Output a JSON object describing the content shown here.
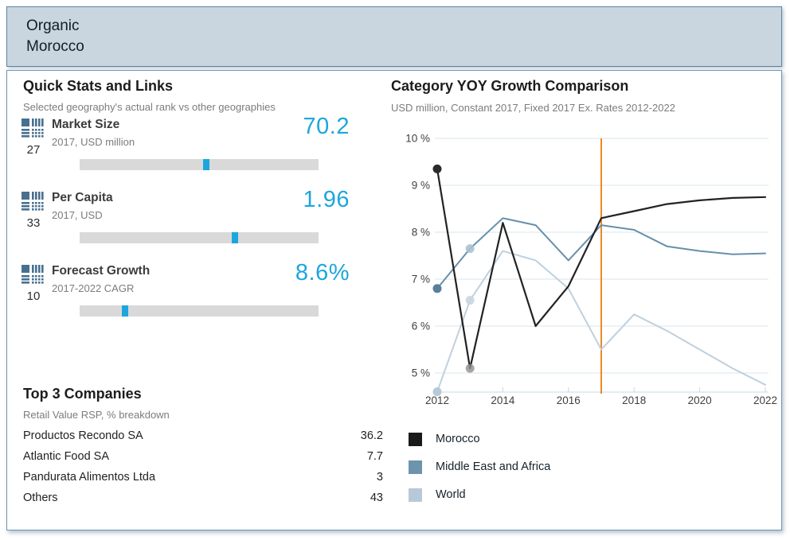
{
  "banner": {
    "title_line1": "Organic",
    "title_line2": "Morocco"
  },
  "colors": {
    "accent_cyan": "#1da6dd",
    "bar_track": "#d9d9d9",
    "banner_bg": "#c9d6e0",
    "panel_border": "#6e96b2",
    "gridline": "#dae5ec",
    "axis_line": "#c7d8e2",
    "forecast_line": "#ee8822"
  },
  "quick_stats": {
    "heading": "Quick Stats and Links",
    "subtitle": "Selected geography's actual rank vs other geographies",
    "items": [
      {
        "rank": "27",
        "title": "Market Size",
        "sub": "2017, USD million",
        "value": "70.2",
        "marker_pct": 53
      },
      {
        "rank": "33",
        "title": "Per Capita",
        "sub": "2017, USD",
        "value": "1.96",
        "marker_pct": 65
      },
      {
        "rank": "10",
        "title": "Forecast Growth",
        "sub": "2017-2022 CAGR",
        "value": "8.6%",
        "marker_pct": 19
      }
    ]
  },
  "top_companies": {
    "heading": "Top 3 Companies",
    "subtitle": "Retail Value RSP, % breakdown",
    "rows": [
      {
        "name": "Productos Recondo SA",
        "value": "36.2"
      },
      {
        "name": "Atlantic Food SA",
        "value": "7.7"
      },
      {
        "name": "Pandurata Alimentos Ltda",
        "value": "3"
      },
      {
        "name": "Others",
        "value": "43"
      }
    ]
  },
  "chart": {
    "heading": "Category YOY Growth Comparison",
    "subtitle": "USD million, Constant 2017, Fixed 2017 Ex. Rates 2012-2022"
  },
  "chart_data": {
    "type": "line",
    "title": "Category YOY Growth Comparison",
    "subtitle": "USD million, Constant 2017, Fixed 2017 Ex. Rates 2012-2022",
    "x": [
      2012,
      2013,
      2014,
      2015,
      2016,
      2017,
      2018,
      2019,
      2020,
      2021,
      2022
    ],
    "series": [
      {
        "name": "Morocco",
        "color": "#222222",
        "width": 2.2,
        "values": [
          9.35,
          5.1,
          8.2,
          6.0,
          6.85,
          8.3,
          8.45,
          8.6,
          8.68,
          8.73,
          8.75
        ],
        "markers": [
          {
            "year": 2012,
            "color": "#2b2b2b",
            "opacity": 1
          },
          {
            "year": 2013,
            "color": "#8f8f8f",
            "opacity": 0.8
          }
        ]
      },
      {
        "name": "Middle East and Africa",
        "color": "#6690ab",
        "width": 2,
        "values": [
          6.8,
          7.65,
          8.3,
          8.15,
          7.4,
          8.15,
          8.05,
          7.7,
          7.6,
          7.53,
          7.55
        ],
        "markers": [
          {
            "year": 2012,
            "color": "#587f9c",
            "opacity": 1
          },
          {
            "year": 2013,
            "color": "#a9c2d3",
            "opacity": 0.9
          }
        ]
      },
      {
        "name": "World",
        "color": "#bfd0dd",
        "width": 2,
        "values": [
          4.6,
          6.55,
          7.6,
          7.4,
          6.8,
          5.5,
          6.25,
          5.9,
          5.5,
          5.1,
          4.75
        ],
        "markers": [
          {
            "year": 2012,
            "color": "#b5c9d8",
            "opacity": 1
          },
          {
            "year": 2013,
            "color": "#c7d6e1",
            "opacity": 0.9
          }
        ]
      }
    ],
    "yticks": [
      {
        "v": 10,
        "label": "10 %"
      },
      {
        "v": 9,
        "label": "9 %"
      },
      {
        "v": 8,
        "label": "8 %"
      },
      {
        "v": 7,
        "label": "7 %"
      },
      {
        "v": 6,
        "label": "6 %"
      },
      {
        "v": 5,
        "label": "5 %"
      }
    ],
    "xticks": [
      {
        "v": 2012,
        "label": "2012"
      },
      {
        "v": 2014,
        "label": "2014"
      },
      {
        "v": 2016,
        "label": "2016"
      },
      {
        "v": 2018,
        "label": "2018"
      },
      {
        "v": 2020,
        "label": "2020"
      },
      {
        "v": 2022,
        "label": "2022"
      }
    ],
    "ylim": [
      4.55,
      10
    ],
    "xlim": [
      2012,
      2022
    ],
    "grid": true,
    "legend_position": "bottom-left",
    "forecast_divider_x": 2017
  },
  "legend": {
    "items": [
      {
        "label": "Morocco",
        "color": "#1a1a1a"
      },
      {
        "label": "Middle East and Africa",
        "color": "#6d93ad"
      },
      {
        "label": "World",
        "color": "#b7c9d8"
      }
    ]
  }
}
